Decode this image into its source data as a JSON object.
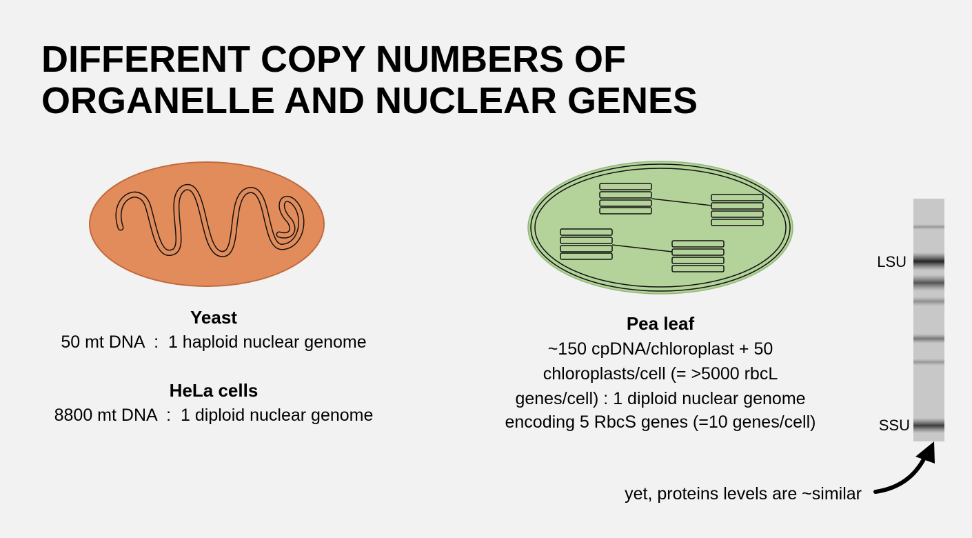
{
  "title": {
    "lines": [
      "DIFFERENT COPY NUMBERS OF",
      "ORGANELLE AND NUCLEAR GENES"
    ]
  },
  "left": {
    "blocks": [
      {
        "heading": "Yeast",
        "text": "50 mt DNA  :  1 haploid nuclear genome"
      },
      {
        "heading": "HeLa cells",
        "text": "8800 mt DNA  :  1 diploid nuclear genome"
      }
    ]
  },
  "right": {
    "heading": "Pea leaf",
    "lines": [
      "~150 cpDNA/chloroplast + 50",
      "chloroplasts/cell (= >5000 rbcL",
      "genes/cell) : 1 diploid nuclear genome",
      "encoding 5 RbcS genes (=10 genes/cell)"
    ]
  },
  "gel": {
    "labels": [
      "LSU",
      "SSU"
    ]
  },
  "note": "yet, proteins levels are ~similar"
}
